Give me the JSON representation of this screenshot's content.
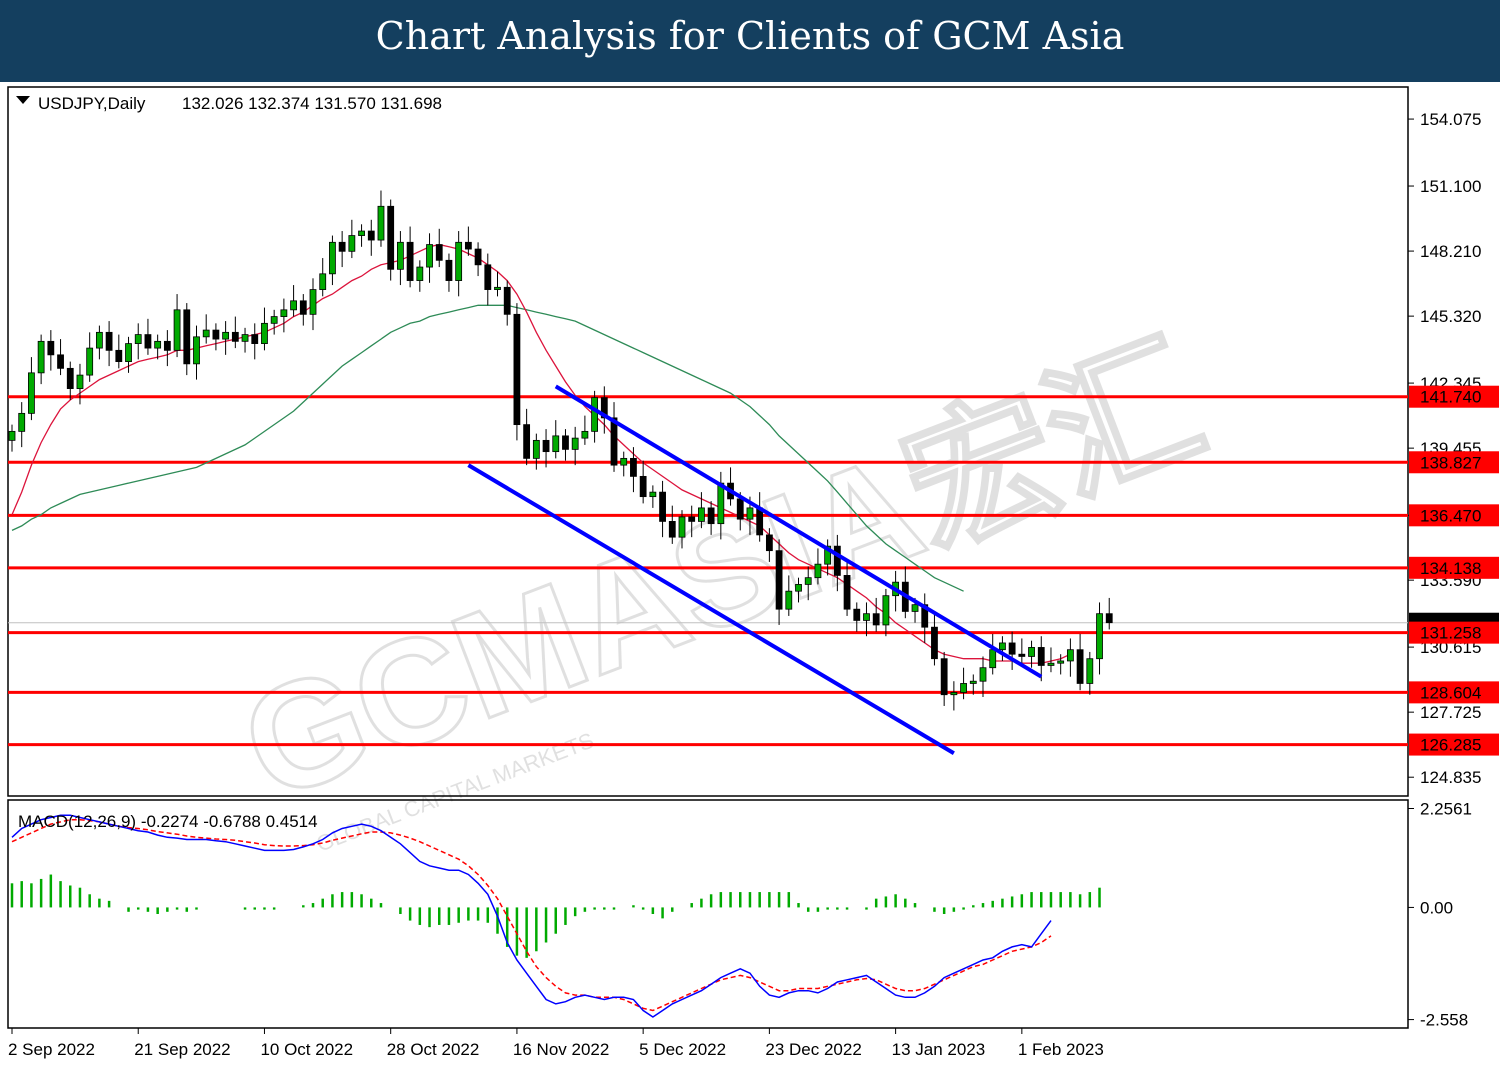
{
  "header": {
    "title": "Chart Analysis for Clients of GCM Asia"
  },
  "watermark": {
    "text": "GCMASIA宏汇",
    "subtext": "GLOBAL CAPITAL MARKETS"
  },
  "chart_data": [
    {
      "type": "candlestick",
      "title": "USDJPY,Daily",
      "ohlc_label": "132.026 132.374 131.570 131.698",
      "last_price": "131.698",
      "ylim": [
        124.0,
        155.5
      ],
      "y_ticks": [
        "154.075",
        "151.100",
        "148.210",
        "145.320",
        "142.345",
        "139.455",
        "136.470",
        "133.590",
        "130.615",
        "127.725",
        "124.835"
      ],
      "x_ticks": [
        {
          "label": "2 Sep 2022",
          "i": 0
        },
        {
          "label": "21 Sep 2022",
          "i": 13
        },
        {
          "label": "10 Oct 2022",
          "i": 26
        },
        {
          "label": "28 Oct 2022",
          "i": 39
        },
        {
          "label": "16 Nov 2022",
          "i": 52
        },
        {
          "label": "5 Dec 2022",
          "i": 65
        },
        {
          "label": "23 Dec 2022",
          "i": 78
        },
        {
          "label": "13 Jan 2023",
          "i": 91
        },
        {
          "label": "1 Feb 2023",
          "i": 104
        }
      ],
      "support_resistance": [
        "141.740",
        "138.827",
        "136.470",
        "134.138",
        "131.258",
        "128.604",
        "126.285"
      ],
      "level_color": "#ff0000",
      "up_color": "#00aa00",
      "down_color": "#000000",
      "channel_color": "#0000ff",
      "channel_lines": [
        {
          "from": {
            "i": 47,
            "v": 138.7
          },
          "to": {
            "i": 97,
            "v": 125.9
          }
        },
        {
          "from": {
            "i": 56,
            "v": 142.2
          },
          "to": {
            "i": 106,
            "v": 129.3
          }
        }
      ],
      "ma_fast_color": "#dc143c",
      "ma_slow_color": "#2e8b57",
      "closes": [
        140.2,
        141.0,
        142.8,
        144.2,
        143.6,
        143.0,
        142.1,
        142.7,
        143.9,
        144.6,
        143.8,
        143.3,
        144.1,
        144.5,
        143.9,
        144.2,
        143.8,
        145.6,
        143.2,
        144.4,
        144.7,
        144.3,
        144.6,
        144.2,
        144.5,
        144.1,
        145.0,
        145.3,
        145.6,
        146.0,
        145.4,
        146.5,
        147.2,
        148.6,
        148.2,
        148.9,
        149.1,
        148.7,
        150.2,
        147.4,
        148.6,
        146.9,
        147.5,
        148.5,
        147.8,
        146.9,
        148.6,
        148.3,
        147.6,
        146.5,
        146.6,
        145.4,
        140.5,
        139.0,
        139.8,
        139.3,
        140.0,
        139.4,
        139.9,
        140.2,
        141.7,
        140.8,
        138.7,
        139.0,
        138.2,
        137.3,
        137.5,
        136.2,
        135.5,
        136.4,
        136.2,
        136.8,
        136.1,
        137.9,
        137.2,
        136.3,
        136.8,
        135.6,
        134.9,
        132.3,
        133.1,
        133.4,
        133.7,
        134.3,
        135.1,
        133.8,
        132.3,
        131.8,
        132.1,
        131.6,
        132.9,
        133.5,
        132.2,
        132.5,
        131.5,
        130.1,
        128.5,
        128.6,
        129.0,
        129.1,
        129.7,
        130.5,
        130.8,
        130.3,
        130.2,
        130.6,
        129.8,
        129.9,
        130.0,
        130.5,
        129.0,
        130.1,
        132.1,
        131.7
      ],
      "ma_fast": [
        136.5,
        137.5,
        138.7,
        139.7,
        140.5,
        141.2,
        141.6,
        141.9,
        142.2,
        142.5,
        142.7,
        142.9,
        143.1,
        143.3,
        143.4,
        143.5,
        143.6,
        143.8,
        143.8,
        143.9,
        144.0,
        144.1,
        144.2,
        144.3,
        144.4,
        144.5,
        144.6,
        144.8,
        145.0,
        145.3,
        145.5,
        145.8,
        146.1,
        146.3,
        146.6,
        146.9,
        147.1,
        147.4,
        147.6,
        147.7,
        147.8,
        148.0,
        148.2,
        148.4,
        148.5,
        148.4,
        148.3,
        148.1,
        147.9,
        147.6,
        147.3,
        146.9,
        146.3,
        145.5,
        144.6,
        143.8,
        143.1,
        142.4,
        141.8,
        141.3,
        140.9,
        140.5,
        140.0,
        139.6,
        139.2,
        138.8,
        138.5,
        138.2,
        137.9,
        137.6,
        137.4,
        137.2,
        137.0,
        136.8,
        136.6,
        136.4,
        136.2,
        136.0,
        135.6,
        135.2,
        134.8,
        134.5,
        134.3,
        134.1,
        133.9,
        133.7,
        133.4,
        133.1,
        132.8,
        132.4,
        132.1,
        131.7,
        131.4,
        131.1,
        130.8,
        130.5,
        130.3,
        130.2,
        130.1,
        130.1,
        130.1,
        130.0,
        130.0,
        130.0,
        129.9,
        129.9,
        129.9,
        130.0,
        130.1,
        130.3
      ],
      "ma_slow": [
        135.8,
        136.0,
        136.3,
        136.5,
        136.8,
        137.0,
        137.2,
        137.4,
        137.5,
        137.6,
        137.7,
        137.8,
        137.9,
        138.0,
        138.1,
        138.2,
        138.3,
        138.4,
        138.5,
        138.6,
        138.8,
        139.0,
        139.2,
        139.4,
        139.6,
        139.9,
        140.2,
        140.5,
        140.8,
        141.1,
        141.5,
        141.9,
        142.3,
        142.7,
        143.1,
        143.4,
        143.7,
        144.0,
        144.3,
        144.6,
        144.8,
        145.0,
        145.1,
        145.3,
        145.4,
        145.5,
        145.6,
        145.7,
        145.8,
        145.8,
        145.8,
        145.8,
        145.7,
        145.6,
        145.5,
        145.4,
        145.3,
        145.2,
        145.1,
        144.9,
        144.7,
        144.5,
        144.3,
        144.1,
        143.9,
        143.7,
        143.5,
        143.3,
        143.1,
        142.9,
        142.7,
        142.5,
        142.3,
        142.1,
        141.9,
        141.6,
        141.3,
        140.9,
        140.5,
        140.0,
        139.6,
        139.2,
        138.8,
        138.4,
        138.0,
        137.5,
        137.0,
        136.5,
        136.0,
        135.6,
        135.2,
        134.9,
        134.6,
        134.3,
        134.0,
        133.7,
        133.5,
        133.3,
        133.1
      ],
      "macd_panel": {
        "label": "MACD(12,26,9) -0.2274 -0.6788 0.4514",
        "ylim": [
          -2.75,
          2.45
        ],
        "y_ticks": [
          "2.2561",
          "0.00",
          "-2.558"
        ],
        "macd_color": "#0000ff",
        "signal_color": "#ff0000",
        "hist_color": "#00aa00",
        "macd": [
          1.6,
          1.8,
          1.9,
          2.0,
          2.05,
          2.1,
          2.1,
          2.05,
          2.0,
          1.95,
          1.9,
          1.85,
          1.8,
          1.75,
          1.72,
          1.65,
          1.6,
          1.58,
          1.55,
          1.55,
          1.55,
          1.52,
          1.5,
          1.45,
          1.4,
          1.35,
          1.3,
          1.3,
          1.3,
          1.32,
          1.38,
          1.45,
          1.55,
          1.7,
          1.8,
          1.85,
          1.9,
          1.85,
          1.75,
          1.6,
          1.45,
          1.25,
          1.05,
          0.95,
          0.9,
          0.85,
          0.85,
          0.75,
          0.55,
          0.3,
          -0.2,
          -0.8,
          -1.2,
          -1.5,
          -1.8,
          -2.1,
          -2.2,
          -2.15,
          -2.05,
          -2.0,
          -2.05,
          -2.1,
          -2.05,
          -2.05,
          -2.1,
          -2.35,
          -2.5,
          -2.35,
          -2.2,
          -2.1,
          -2.0,
          -1.9,
          -1.75,
          -1.6,
          -1.5,
          -1.4,
          -1.5,
          -1.8,
          -2.0,
          -2.05,
          -1.95,
          -1.9,
          -1.9,
          -1.95,
          -1.85,
          -1.7,
          -1.65,
          -1.6,
          -1.55,
          -1.7,
          -1.85,
          -2.0,
          -2.05,
          -2.05,
          -1.95,
          -1.8,
          -1.6,
          -1.5,
          -1.4,
          -1.3,
          -1.2,
          -1.15,
          -1.0,
          -0.9,
          -0.85,
          -0.9,
          -0.6,
          -0.3
        ],
        "signal": [
          1.5,
          1.6,
          1.7,
          1.8,
          1.9,
          1.95,
          2.0,
          2.0,
          1.98,
          1.95,
          1.9,
          1.85,
          1.82,
          1.8,
          1.77,
          1.73,
          1.7,
          1.67,
          1.63,
          1.6,
          1.58,
          1.56,
          1.55,
          1.53,
          1.5,
          1.47,
          1.43,
          1.41,
          1.4,
          1.4,
          1.41,
          1.43,
          1.47,
          1.53,
          1.58,
          1.63,
          1.68,
          1.72,
          1.72,
          1.7,
          1.65,
          1.58,
          1.5,
          1.4,
          1.3,
          1.2,
          1.1,
          0.95,
          0.75,
          0.5,
          0.2,
          -0.2,
          -0.6,
          -1.0,
          -1.35,
          -1.6,
          -1.8,
          -1.95,
          -2.0,
          -2.0,
          -2.05,
          -2.05,
          -2.05,
          -2.1,
          -2.2,
          -2.3,
          -2.35,
          -2.25,
          -2.15,
          -2.05,
          -1.95,
          -1.85,
          -1.75,
          -1.65,
          -1.6,
          -1.55,
          -1.6,
          -1.7,
          -1.8,
          -1.9,
          -1.9,
          -1.85,
          -1.85,
          -1.85,
          -1.8,
          -1.75,
          -1.7,
          -1.65,
          -1.62,
          -1.65,
          -1.75,
          -1.85,
          -1.9,
          -1.9,
          -1.85,
          -1.75,
          -1.65,
          -1.55,
          -1.45,
          -1.35,
          -1.3,
          -1.2,
          -1.1,
          -1.0,
          -0.95,
          -0.9,
          -0.8,
          -0.65
        ],
        "hist": [
          0.55,
          0.6,
          0.55,
          0.65,
          0.75,
          0.6,
          0.5,
          0.45,
          0.3,
          0.2,
          0.15,
          0.0,
          -0.1,
          -0.05,
          -0.1,
          -0.15,
          -0.1,
          -0.05,
          -0.1,
          -0.05,
          0.0,
          0.0,
          0.0,
          0.0,
          -0.05,
          -0.05,
          -0.05,
          -0.05,
          0.0,
          0.0,
          0.05,
          0.1,
          0.2,
          0.3,
          0.35,
          0.35,
          0.3,
          0.2,
          0.1,
          0.0,
          -0.15,
          -0.3,
          -0.4,
          -0.45,
          -0.4,
          -0.4,
          -0.35,
          -0.3,
          -0.3,
          -0.35,
          -0.6,
          -0.9,
          -1.1,
          -1.15,
          -1.0,
          -0.8,
          -0.6,
          -0.4,
          -0.2,
          -0.1,
          -0.05,
          -0.05,
          -0.05,
          0.0,
          0.05,
          -0.05,
          -0.15,
          -0.25,
          -0.1,
          0.0,
          0.1,
          0.2,
          0.3,
          0.35,
          0.35,
          0.35,
          0.35,
          0.35,
          0.35,
          0.35,
          0.35,
          0.1,
          -0.1,
          -0.1,
          -0.05,
          -0.05,
          -0.05,
          0.0,
          -0.05,
          0.2,
          0.25,
          0.3,
          0.2,
          0.1,
          0.0,
          -0.1,
          -0.15,
          -0.1,
          -0.05,
          0.05,
          0.1,
          0.15,
          0.2,
          0.25,
          0.3,
          0.35,
          0.35,
          0.35,
          0.35,
          0.35,
          0.3,
          0.35,
          0.45
        ]
      }
    }
  ]
}
